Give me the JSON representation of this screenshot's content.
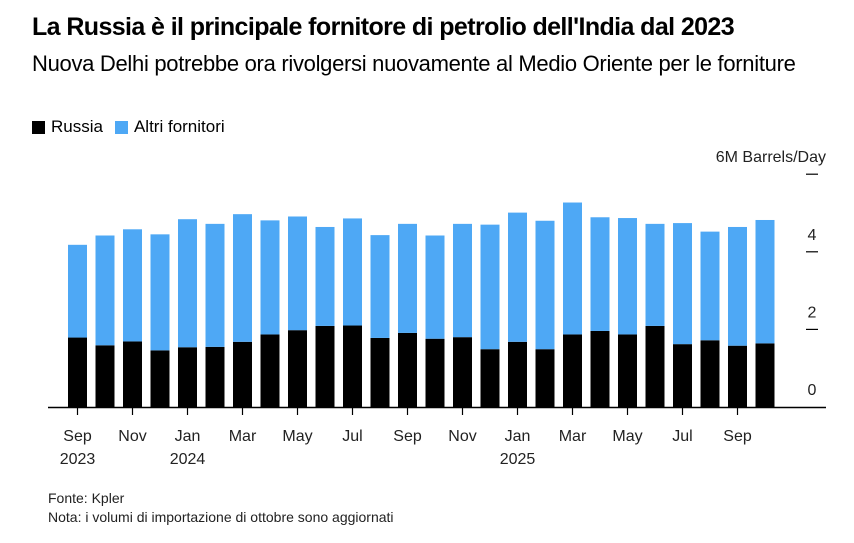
{
  "header": {
    "title": "La Russia è il principale fornitore di petrolio dell'India dal 2023",
    "subtitle": "Nuova Delhi potrebbe ora rivolgersi nuovamente al Medio Oriente per le forniture"
  },
  "legend": [
    {
      "label": "Russia",
      "color": "#000000"
    },
    {
      "label": "Altri fornitori",
      "color": "#4ea8f5"
    }
  ],
  "footer": {
    "source": "Fonte: Kpler",
    "note": "Nota: i volumi di importazione di ottobre sono aggiornati"
  },
  "chart_data": {
    "type": "bar",
    "stacked": true,
    "title": "La Russia è il principale fornitore di petrolio dell'India dal 2023",
    "subtitle": "Nuova Delhi potrebbe ora rivolgersi nuovamente al Medio Oriente per le forniture",
    "ylabel": "6M Barrels/Day",
    "unit": "M Barrels/Day",
    "ylim": [
      0,
      6
    ],
    "yticks": [
      0,
      2,
      4,
      6
    ],
    "ytick_labels": [
      "0",
      "2",
      "4",
      "6M Barrels/Day"
    ],
    "y_axis_side": "right",
    "grid": false,
    "legend_position": "top-left",
    "categories": [
      "Sep 2023",
      "Oct 2023",
      "Nov 2023",
      "Dec 2023",
      "Jan 2024",
      "Feb 2024",
      "Mar 2024",
      "Apr 2024",
      "May 2024",
      "Jun 2024",
      "Jul 2024",
      "Aug 2024",
      "Sep 2024",
      "Oct 2024",
      "Nov 2024",
      "Dec 2024",
      "Jan 2025",
      "Feb 2025",
      "Mar 2025",
      "Apr 2025",
      "May 2025",
      "Jun 2025",
      "Jul 2025",
      "Aug 2025",
      "Sep 2025",
      "Oct 2025"
    ],
    "xtick_labels": [
      {
        "index": 0,
        "month": "Sep",
        "year": "2023"
      },
      {
        "index": 2,
        "month": "Nov",
        "year": ""
      },
      {
        "index": 4,
        "month": "Jan",
        "year": "2024"
      },
      {
        "index": 6,
        "month": "Mar",
        "year": ""
      },
      {
        "index": 8,
        "month": "May",
        "year": ""
      },
      {
        "index": 10,
        "month": "Jul",
        "year": ""
      },
      {
        "index": 12,
        "month": "Sep",
        "year": ""
      },
      {
        "index": 14,
        "month": "Nov",
        "year": ""
      },
      {
        "index": 16,
        "month": "Jan",
        "year": "2025"
      },
      {
        "index": 18,
        "month": "Mar",
        "year": ""
      },
      {
        "index": 20,
        "month": "May",
        "year": ""
      },
      {
        "index": 22,
        "month": "Jul",
        "year": ""
      },
      {
        "index": 24,
        "month": "Sep",
        "year": ""
      }
    ],
    "series": [
      {
        "name": "Russia",
        "color": "#000000",
        "values": [
          1.79,
          1.59,
          1.69,
          1.46,
          1.54,
          1.55,
          1.68,
          1.87,
          1.98,
          2.09,
          2.1,
          1.78,
          1.91,
          1.76,
          1.8,
          1.49,
          1.68,
          1.49,
          1.87,
          1.96,
          1.87,
          2.09,
          1.62,
          1.72,
          1.58,
          1.64
        ]
      },
      {
        "name": "Altri fornitori",
        "color": "#4ea8f5",
        "values": [
          2.39,
          2.83,
          2.89,
          2.99,
          3.3,
          3.17,
          3.29,
          2.94,
          2.93,
          2.55,
          2.76,
          2.65,
          2.81,
          2.66,
          2.92,
          3.21,
          3.33,
          3.31,
          3.4,
          2.93,
          3.0,
          2.63,
          3.12,
          2.8,
          3.06,
          3.18
        ]
      }
    ]
  }
}
